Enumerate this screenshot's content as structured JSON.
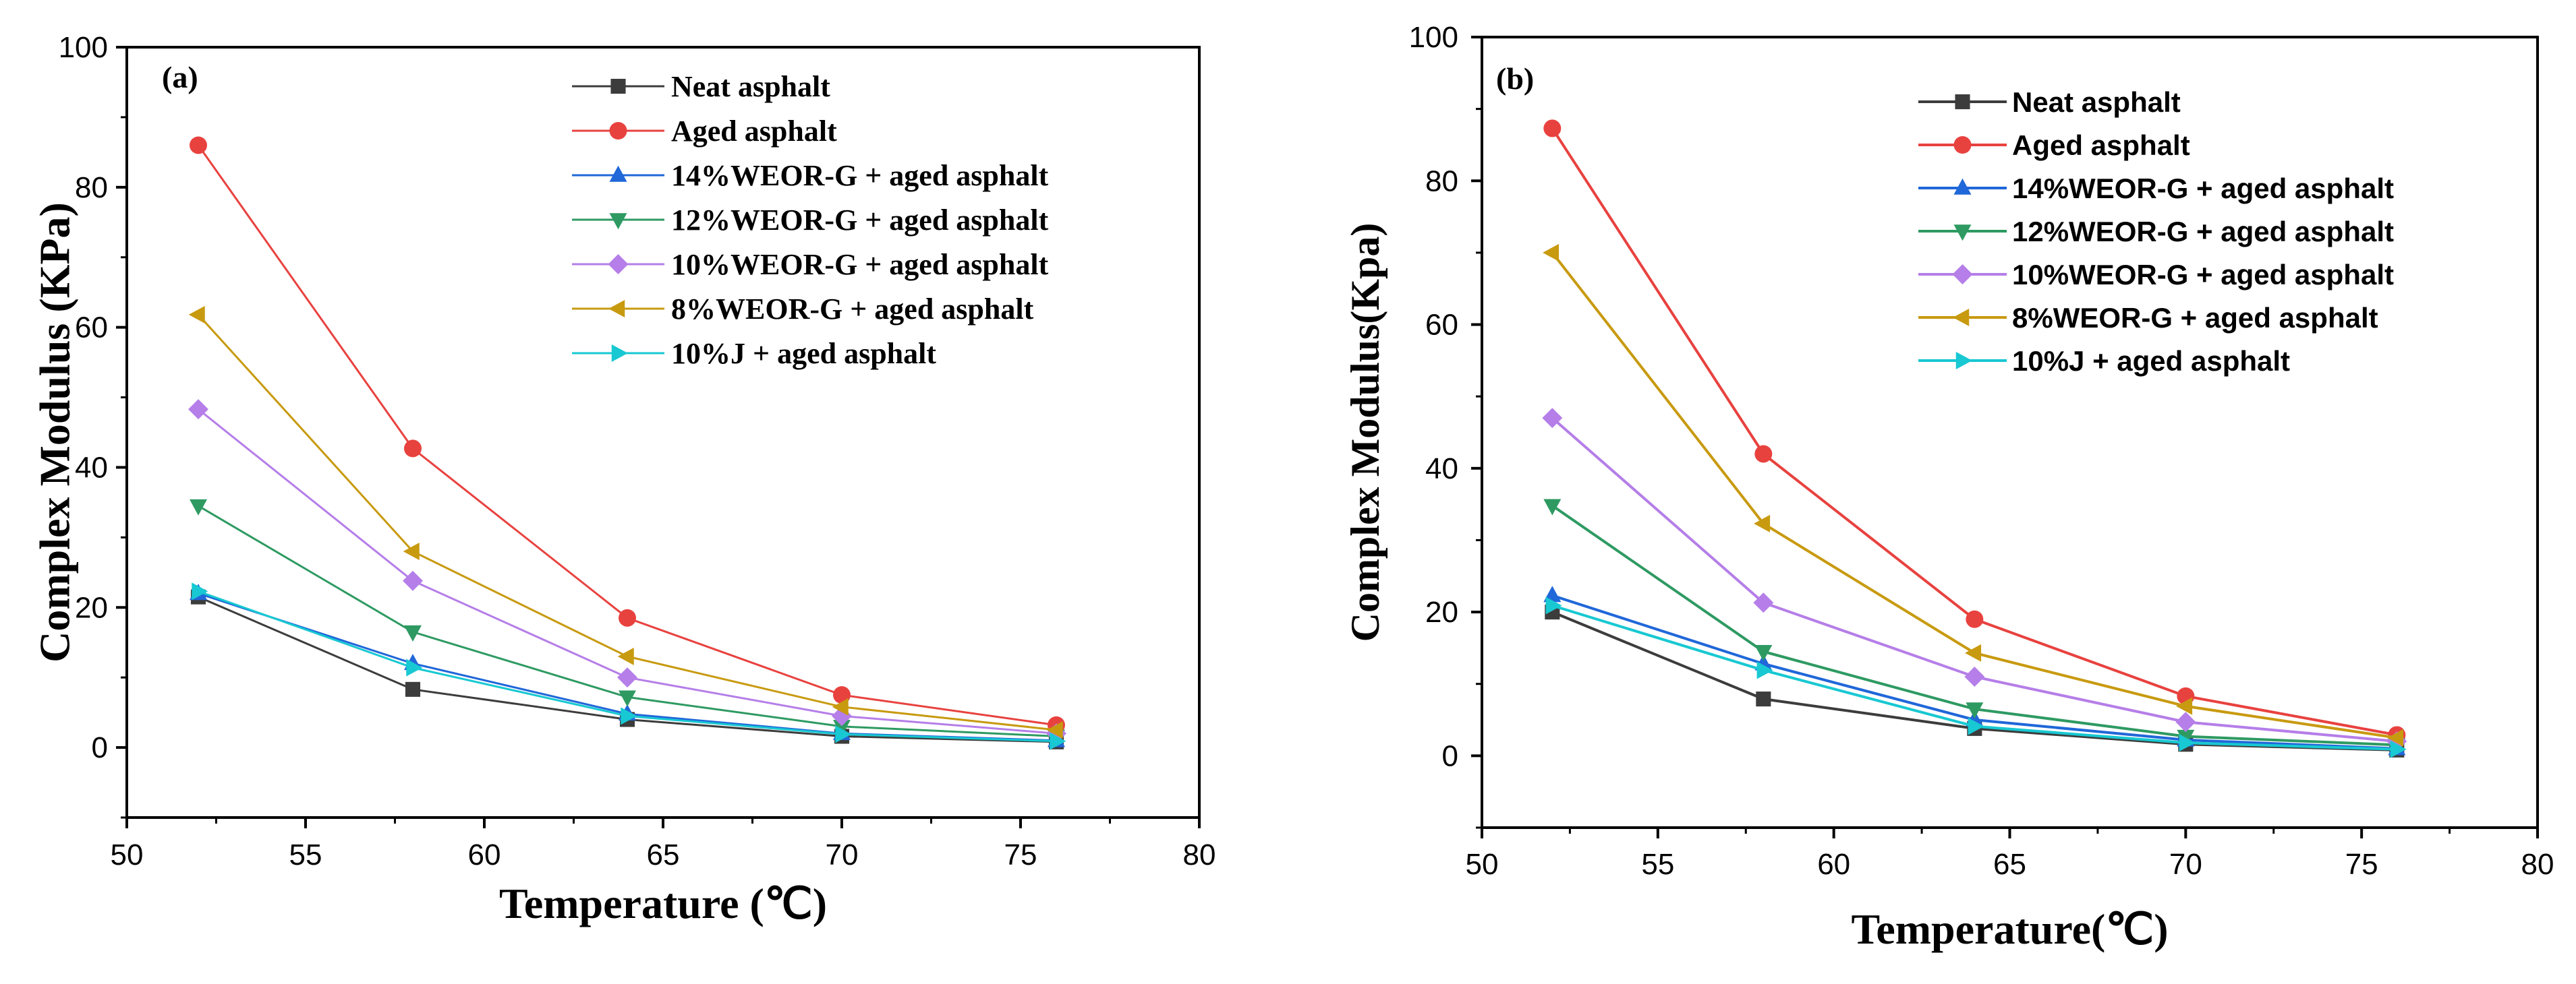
{
  "chart_data": [
    {
      "type": "line",
      "panel": "(a)",
      "xlabel": "Temperature (℃)",
      "ylabel": "Complex Modulus (KPa)",
      "xlim": [
        50,
        80
      ],
      "ylim": [
        -10,
        100
      ],
      "xticks": [
        50,
        55,
        60,
        65,
        70,
        75,
        80
      ],
      "yticks": [
        0,
        20,
        40,
        60,
        80,
        100
      ],
      "x": [
        52,
        58,
        64,
        70,
        76
      ],
      "legend_position": "top-right",
      "series": [
        {
          "name": "Neat asphalt",
          "color": "#3c3c3c",
          "marker": "square",
          "values": [
            21.5,
            8.3,
            4.0,
            1.6,
            0.8
          ]
        },
        {
          "name": "Aged asphalt",
          "color": "#e8423f",
          "marker": "circle",
          "values": [
            86.0,
            42.7,
            18.5,
            7.5,
            3.2
          ]
        },
        {
          "name": "14%WEOR-G + aged asphalt",
          "color": "#2067d9",
          "marker": "triangle-up",
          "values": [
            22.0,
            12.0,
            4.8,
            2.0,
            1.0
          ]
        },
        {
          "name": "12%WEOR-G + aged asphalt",
          "color": "#2e9a62",
          "marker": "triangle-down",
          "values": [
            34.5,
            16.5,
            7.2,
            3.0,
            1.6
          ]
        },
        {
          "name": "10%WEOR-G + aged asphalt",
          "color": "#b57ee8",
          "marker": "diamond",
          "values": [
            48.3,
            23.8,
            10.0,
            4.5,
            2.0
          ]
        },
        {
          "name": "8%WEOR-G + aged asphalt",
          "color": "#c89a10",
          "marker": "triangle-left",
          "values": [
            61.8,
            28.0,
            13.0,
            5.8,
            2.5
          ]
        },
        {
          "name": "10%J + aged asphalt",
          "color": "#18c8d2",
          "marker": "triangle-right",
          "values": [
            22.3,
            11.4,
            4.5,
            1.9,
            0.9
          ]
        }
      ]
    },
    {
      "type": "line",
      "panel": "(b)",
      "xlabel": "Temperature(℃)",
      "ylabel": "Complex Modulus(Kpa)",
      "xlim": [
        50,
        80
      ],
      "ylim": [
        -10,
        100
      ],
      "xticks": [
        50,
        55,
        60,
        65,
        70,
        75,
        80
      ],
      "yticks": [
        0,
        20,
        40,
        60,
        80,
        100
      ],
      "x": [
        52,
        58,
        64,
        70,
        76
      ],
      "legend_position": "top-right",
      "series": [
        {
          "name": "Neat asphalt",
          "color": "#3c3c3c",
          "marker": "square",
          "values": [
            20.0,
            7.9,
            3.8,
            1.6,
            0.8
          ]
        },
        {
          "name": "Aged asphalt",
          "color": "#e8423f",
          "marker": "circle",
          "values": [
            87.3,
            42.0,
            19.0,
            8.3,
            2.9
          ]
        },
        {
          "name": "14%WEOR-G + aged asphalt",
          "color": "#2067d9",
          "marker": "triangle-up",
          "values": [
            22.3,
            12.8,
            5.0,
            2.2,
            1.0
          ]
        },
        {
          "name": "12%WEOR-G + aged asphalt",
          "color": "#2e9a62",
          "marker": "triangle-down",
          "values": [
            34.8,
            14.5,
            6.5,
            2.7,
            1.5
          ]
        },
        {
          "name": "10%WEOR-G + aged asphalt",
          "color": "#b57ee8",
          "marker": "diamond",
          "values": [
            47.0,
            21.3,
            11.0,
            4.7,
            2.0
          ]
        },
        {
          "name": "8%WEOR-G + aged asphalt",
          "color": "#c89a10",
          "marker": "triangle-left",
          "values": [
            70.0,
            32.3,
            14.3,
            6.9,
            2.5
          ]
        },
        {
          "name": "10%J + aged asphalt",
          "color": "#18c8d2",
          "marker": "triangle-right",
          "values": [
            20.9,
            11.9,
            4.1,
            1.8,
            0.9
          ]
        }
      ]
    }
  ]
}
